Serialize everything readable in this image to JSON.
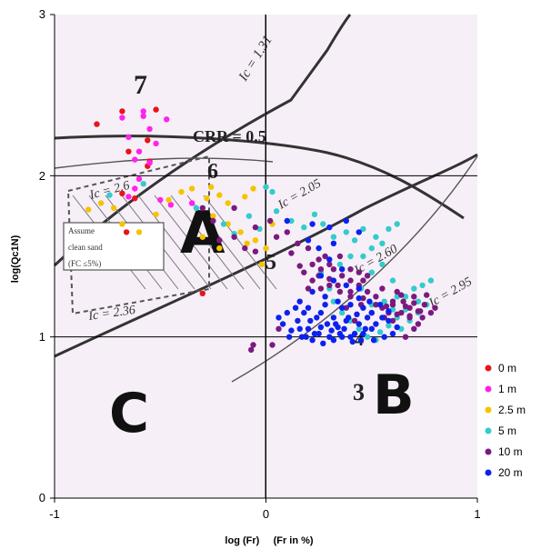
{
  "chart_data": {
    "type": "scatter",
    "title": "",
    "xlabel": "log (Fr)     (Fr in %)",
    "ylabel": "log(Qc1N)",
    "xlim": [
      -1,
      1
    ],
    "ylim": [
      0,
      3
    ],
    "xticks": [
      "-1",
      "0",
      "1"
    ],
    "yticks": [
      "0",
      "1",
      "2",
      "3"
    ],
    "grid": "lines at x=0 and y=1,2",
    "legend_position": "right",
    "background_labels": {
      "zone_7": "7",
      "zone_6": "6",
      "zone_5": "5",
      "zone_4": "4",
      "zone_3": "3",
      "zone_A": "A",
      "zone_B": "B",
      "zone_C": "C",
      "crr": "CRR = 0.5",
      "ic_131": "Ic = 1.31",
      "ic_205": "Ic = 2.05",
      "ic_260": "Ic = 2.60",
      "ic_295": "Ic = 2.95",
      "ic_26": "Ic = 2.6",
      "ic_236": "Ic = 2.36",
      "box_line1": "Assume",
      "box_line2": "clean sand",
      "box_line3": "(FC ≤5%)"
    },
    "series": [
      {
        "name": "0 m",
        "color": "#e8141a",
        "points": [
          [
            -0.8,
            2.32
          ],
          [
            -0.68,
            2.4
          ],
          [
            -0.52,
            2.41
          ],
          [
            -0.56,
            2.22
          ],
          [
            -0.65,
            2.15
          ],
          [
            -0.55,
            2.09
          ],
          [
            -0.56,
            2.06
          ],
          [
            -0.68,
            1.89
          ],
          [
            -0.62,
            1.86
          ],
          [
            -0.66,
            1.65
          ],
          [
            -0.3,
            1.27
          ]
        ]
      },
      {
        "name": "1 m",
        "color": "#ff22ee",
        "points": [
          [
            -0.68,
            2.36
          ],
          [
            -0.58,
            2.4
          ],
          [
            -0.58,
            2.37
          ],
          [
            -0.47,
            2.35
          ],
          [
            -0.55,
            2.29
          ],
          [
            -0.65,
            2.24
          ],
          [
            -0.52,
            2.2
          ],
          [
            -0.6,
            2.15
          ],
          [
            -0.62,
            2.1
          ],
          [
            -0.55,
            2.08
          ],
          [
            -0.6,
            1.98
          ],
          [
            -0.62,
            1.92
          ],
          [
            -0.65,
            1.87
          ],
          [
            -0.5,
            1.85
          ],
          [
            -0.45,
            1.82
          ],
          [
            -0.35,
            1.83
          ]
        ]
      },
      {
        "name": "2.5 m",
        "color": "#f5c400",
        "points": [
          [
            -0.84,
            1.79
          ],
          [
            -0.78,
            1.83
          ],
          [
            -0.72,
            1.8
          ],
          [
            -0.68,
            1.7
          ],
          [
            -0.6,
            1.65
          ],
          [
            -0.52,
            1.76
          ],
          [
            -0.46,
            1.85
          ],
          [
            -0.4,
            1.9
          ],
          [
            -0.35,
            1.92
          ],
          [
            -0.28,
            1.86
          ],
          [
            -0.26,
            1.93
          ],
          [
            -0.22,
            1.88
          ],
          [
            -0.18,
            1.83
          ],
          [
            -0.1,
            1.87
          ],
          [
            -0.06,
            1.92
          ],
          [
            -0.25,
            1.75
          ],
          [
            -0.18,
            1.7
          ],
          [
            -0.12,
            1.65
          ],
          [
            -0.09,
            1.58
          ],
          [
            -0.05,
            1.6
          ],
          [
            0.0,
            1.55
          ],
          [
            -0.02,
            1.45
          ],
          [
            0.03,
            1.7
          ],
          [
            -0.3,
            1.62
          ],
          [
            -0.22,
            1.55
          ]
        ]
      },
      {
        "name": "5 m",
        "color": "#33cccc",
        "points": [
          [
            -0.74,
            1.88
          ],
          [
            -0.58,
            1.95
          ],
          [
            -0.33,
            1.8
          ],
          [
            -0.2,
            1.7
          ],
          [
            -0.15,
            1.64
          ],
          [
            -0.08,
            1.75
          ],
          [
            -0.03,
            1.67
          ],
          [
            0.0,
            1.93
          ],
          [
            0.03,
            1.9
          ],
          [
            0.05,
            1.78
          ],
          [
            0.12,
            1.72
          ],
          [
            0.18,
            1.68
          ],
          [
            0.23,
            1.76
          ],
          [
            0.27,
            1.7
          ],
          [
            0.32,
            1.62
          ],
          [
            0.38,
            1.65
          ],
          [
            0.42,
            1.6
          ],
          [
            0.46,
            1.67
          ],
          [
            0.5,
            1.55
          ],
          [
            0.52,
            1.62
          ],
          [
            0.55,
            1.58
          ],
          [
            0.58,
            1.67
          ],
          [
            0.46,
            1.5
          ],
          [
            0.5,
            1.4
          ],
          [
            0.55,
            1.45
          ],
          [
            0.6,
            1.35
          ],
          [
            0.62,
            1.25
          ],
          [
            0.66,
            1.25
          ],
          [
            0.7,
            1.3
          ],
          [
            0.74,
            1.32
          ],
          [
            0.78,
            1.35
          ],
          [
            0.66,
            1.17
          ],
          [
            0.62,
            1.12
          ],
          [
            0.58,
            1.07
          ],
          [
            0.54,
            1.03
          ],
          [
            0.52,
            0.98
          ],
          [
            0.48,
            1.0
          ],
          [
            0.44,
            1.05
          ],
          [
            0.4,
            1.1
          ],
          [
            0.36,
            1.15
          ],
          [
            0.32,
            1.22
          ],
          [
            0.3,
            1.3
          ],
          [
            0.26,
            1.4
          ],
          [
            0.35,
            1.45
          ],
          [
            0.4,
            1.5
          ],
          [
            0.45,
            1.3
          ],
          [
            0.5,
            1.2
          ],
          [
            0.56,
            1.22
          ],
          [
            0.6,
            1.17
          ],
          [
            0.64,
            1.05
          ],
          [
            0.68,
            1.1
          ],
          [
            0.72,
            1.15
          ],
          [
            0.76,
            1.2
          ],
          [
            0.62,
            1.7
          ],
          [
            0.72,
            1.22
          ]
        ]
      },
      {
        "name": "10 m",
        "color": "#7a1a80",
        "points": [
          [
            -0.3,
            1.8
          ],
          [
            -0.25,
            1.72
          ],
          [
            -0.22,
            1.6
          ],
          [
            -0.15,
            1.62
          ],
          [
            -0.1,
            1.55
          ],
          [
            -0.05,
            1.68
          ],
          [
            0.02,
            1.72
          ],
          [
            0.05,
            1.62
          ],
          [
            0.1,
            1.65
          ],
          [
            0.15,
            1.58
          ],
          [
            0.2,
            1.55
          ],
          [
            0.25,
            1.48
          ],
          [
            0.3,
            1.45
          ],
          [
            0.35,
            1.5
          ],
          [
            0.4,
            1.42
          ],
          [
            0.44,
            1.4
          ],
          [
            0.48,
            1.38
          ],
          [
            0.25,
            1.38
          ],
          [
            0.3,
            1.32
          ],
          [
            0.35,
            1.28
          ],
          [
            0.4,
            1.25
          ],
          [
            0.45,
            1.2
          ],
          [
            0.5,
            1.15
          ],
          [
            0.55,
            1.18
          ],
          [
            0.6,
            1.2
          ],
          [
            0.65,
            1.22
          ],
          [
            0.7,
            1.25
          ],
          [
            0.75,
            1.2
          ],
          [
            0.78,
            1.15
          ],
          [
            0.8,
            1.18
          ],
          [
            0.72,
            1.08
          ],
          [
            0.68,
            1.12
          ],
          [
            0.64,
            1.15
          ],
          [
            0.6,
            1.1
          ],
          [
            0.56,
            1.12
          ],
          [
            0.52,
            1.25
          ],
          [
            0.48,
            1.28
          ],
          [
            0.44,
            1.32
          ],
          [
            0.4,
            1.35
          ],
          [
            0.36,
            1.38
          ],
          [
            0.32,
            1.42
          ],
          [
            0.28,
            1.5
          ],
          [
            0.22,
            1.45
          ],
          [
            0.18,
            1.4
          ],
          [
            0.26,
            1.3
          ],
          [
            0.38,
            1.18
          ],
          [
            0.42,
            1.1
          ],
          [
            0.55,
            1.3
          ],
          [
            0.62,
            1.28
          ],
          [
            0.68,
            1.18
          ],
          [
            0.74,
            1.12
          ],
          [
            0.7,
            1.05
          ],
          [
            0.66,
            1.0
          ],
          [
            -0.15,
            1.8
          ],
          [
            -0.05,
            1.53
          ],
          [
            0.12,
            1.52
          ],
          [
            0.58,
            1.15
          ],
          [
            0.72,
            1.16
          ],
          [
            0.76,
            1.26
          ],
          [
            0.64,
            1.26
          ],
          [
            0.06,
            1.05
          ],
          [
            0.03,
            0.95
          ],
          [
            -0.06,
            0.95
          ],
          [
            -0.07,
            0.92
          ],
          [
            0.66,
            1.19
          ],
          [
            0.7,
            1.21
          ],
          [
            0.68,
            1.13
          ],
          [
            0.73,
            1.16
          ],
          [
            0.6,
            1.22
          ],
          [
            0.57,
            1.19
          ],
          [
            0.62,
            1.14
          ],
          [
            0.52,
            1.2
          ],
          [
            0.46,
            1.24
          ],
          [
            0.4,
            1.28
          ],
          [
            0.34,
            1.32
          ],
          [
            0.3,
            1.36
          ],
          [
            0.26,
            1.42
          ],
          [
            0.22,
            1.35
          ],
          [
            0.2,
            1.3
          ],
          [
            0.16,
            1.44
          ],
          [
            0.46,
            1.35
          ]
        ]
      },
      {
        "name": "20 m",
        "color": "#0b22ee",
        "points": [
          [
            0.1,
            1.72
          ],
          [
            0.22,
            1.7
          ],
          [
            0.3,
            1.68
          ],
          [
            0.38,
            1.72
          ],
          [
            0.44,
            1.65
          ],
          [
            0.2,
            1.6
          ],
          [
            0.25,
            1.55
          ],
          [
            0.32,
            1.58
          ],
          [
            0.3,
            1.48
          ],
          [
            0.36,
            1.42
          ],
          [
            0.26,
            1.38
          ],
          [
            0.32,
            1.35
          ],
          [
            0.38,
            1.32
          ],
          [
            0.44,
            1.3
          ],
          [
            0.22,
            1.28
          ],
          [
            0.28,
            1.25
          ],
          [
            0.34,
            1.22
          ],
          [
            0.4,
            1.2
          ],
          [
            0.46,
            1.18
          ],
          [
            0.5,
            1.15
          ],
          [
            0.16,
            1.22
          ],
          [
            0.2,
            1.18
          ],
          [
            0.26,
            1.15
          ],
          [
            0.32,
            1.12
          ],
          [
            0.38,
            1.1
          ],
          [
            0.44,
            1.08
          ],
          [
            0.5,
            1.05
          ],
          [
            0.1,
            1.15
          ],
          [
            0.15,
            1.1
          ],
          [
            0.2,
            1.05
          ],
          [
            0.25,
            1.02
          ],
          [
            0.3,
            1.0
          ],
          [
            0.35,
            1.02
          ],
          [
            0.4,
            1.0
          ],
          [
            0.45,
            0.98
          ],
          [
            0.08,
            1.08
          ],
          [
            0.12,
            1.04
          ],
          [
            0.17,
            1.0
          ],
          [
            0.22,
            0.98
          ],
          [
            0.27,
            0.96
          ],
          [
            0.32,
            0.98
          ],
          [
            0.37,
            1.05
          ],
          [
            0.42,
            1.02
          ],
          [
            0.47,
            1.05
          ],
          [
            0.52,
            1.08
          ],
          [
            0.55,
            1.12
          ],
          [
            0.58,
            1.1
          ],
          [
            0.62,
            1.06
          ],
          [
            0.24,
            1.12
          ],
          [
            0.29,
            1.08
          ],
          [
            0.34,
            1.06
          ],
          [
            0.39,
            1.12
          ],
          [
            0.18,
            1.15
          ],
          [
            0.14,
            1.18
          ],
          [
            0.36,
            1.18
          ],
          [
            0.28,
            1.2
          ],
          [
            0.43,
            1.14
          ],
          [
            0.48,
            1.12
          ],
          [
            0.06,
            1.12
          ],
          [
            0.11,
            1.0
          ],
          [
            0.16,
            1.05
          ],
          [
            0.21,
            1.1
          ],
          [
            0.26,
            1.06
          ],
          [
            0.31,
            1.04
          ],
          [
            0.36,
            1.0
          ],
          [
            0.41,
            0.97
          ],
          [
            0.46,
            1.02
          ],
          [
            0.51,
            0.98
          ],
          [
            0.56,
            1.0
          ],
          [
            0.6,
            1.02
          ],
          [
            0.19,
            1.0
          ],
          [
            0.23,
            1.02
          ],
          [
            0.33,
            1.08
          ],
          [
            0.44,
            1.24
          ],
          [
            0.49,
            1.22
          ],
          [
            0.54,
            1.2
          ],
          [
            0.58,
            1.16
          ]
        ]
      }
    ]
  }
}
